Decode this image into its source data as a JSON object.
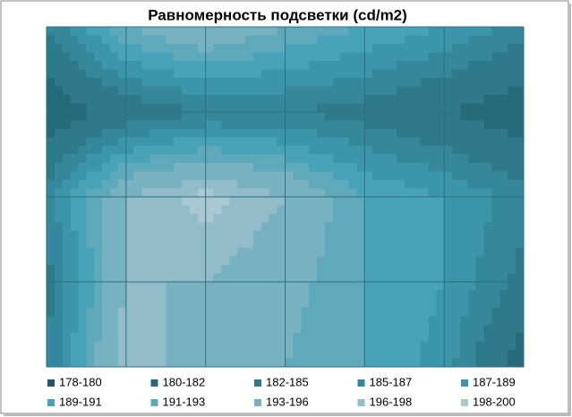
{
  "chart_data": {
    "type": "contour",
    "title": "Равномерность подсветки (cd/m2)",
    "levels": [
      178,
      180,
      182,
      185,
      187,
      189,
      191,
      193,
      196,
      198,
      200
    ],
    "series": [
      {
        "name": "178-180",
        "color": "#1f5868"
      },
      {
        "name": "180-182",
        "color": "#266b7b"
      },
      {
        "name": "182-185",
        "color": "#2e7a8b"
      },
      {
        "name": "185-187",
        "color": "#35889b"
      },
      {
        "name": "187-189",
        "color": "#3c95a9"
      },
      {
        "name": "189-191",
        "color": "#48a2b8"
      },
      {
        "name": "191-193",
        "color": "#5ea9bc"
      },
      {
        "name": "193-196",
        "color": "#78b1c0"
      },
      {
        "name": "196-198",
        "color": "#92bcc8"
      },
      {
        "name": "198-200",
        "color": "#a9c8d1"
      }
    ],
    "z": [
      [
        185,
        193,
        196,
        193,
        191,
        189,
        186
      ],
      [
        180,
        183,
        185,
        185,
        184,
        182,
        180
      ],
      [
        186,
        196,
        199,
        196,
        191,
        189,
        186
      ],
      [
        184,
        196,
        196,
        194,
        191,
        189,
        184
      ],
      [
        185,
        198,
        194,
        193,
        191,
        188,
        180
      ]
    ],
    "grid": true
  }
}
